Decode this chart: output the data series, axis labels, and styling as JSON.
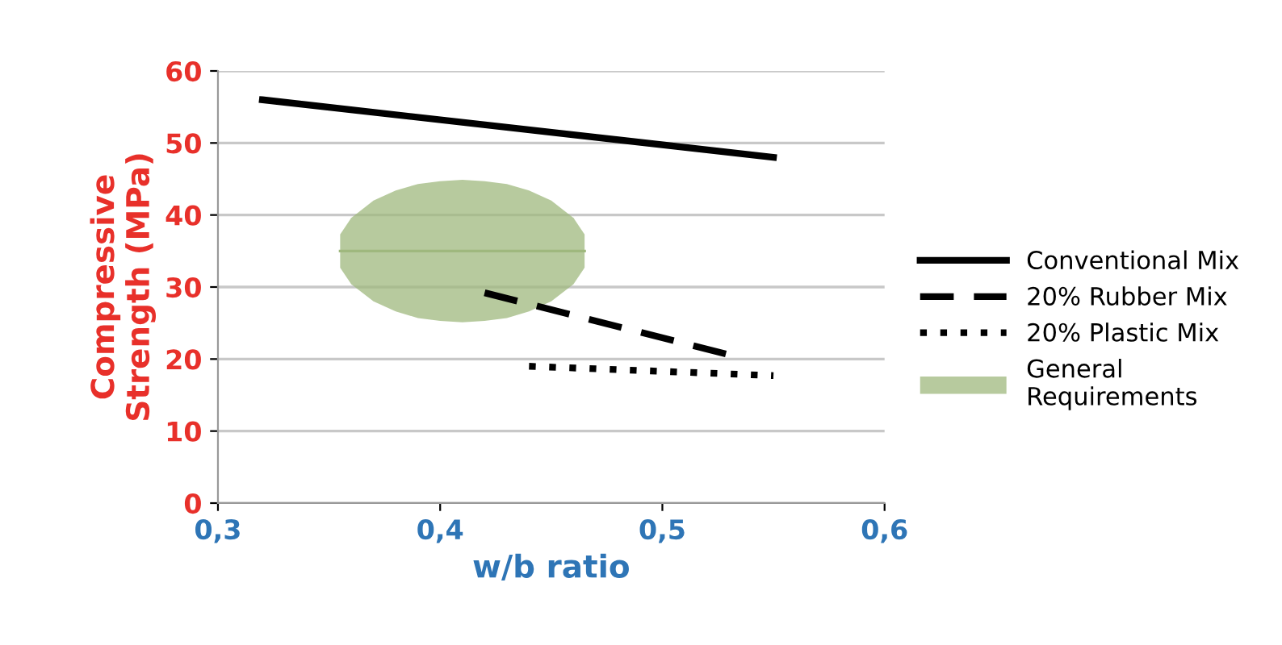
{
  "chart_data": {
    "type": "line",
    "xlabel": "w/b ratio",
    "ylabel": "Compressive\nStrength (MPa)",
    "xlim": [
      0.3,
      0.6
    ],
    "xticks": [
      {
        "value": 0.3,
        "label": "0,3"
      },
      {
        "value": 0.4,
        "label": "0,4"
      },
      {
        "value": 0.5,
        "label": "0,5"
      },
      {
        "value": 0.6,
        "label": "0,6"
      }
    ],
    "ylim": [
      0,
      60
    ],
    "yticks": [
      0,
      10,
      20,
      30,
      40,
      50,
      60
    ],
    "grid": "y",
    "legend": "right",
    "series": [
      {
        "name": "Conventional Mix",
        "color": "#000000",
        "line_style": "solid",
        "x": [
          0.32,
          0.55
        ],
        "values": [
          56,
          48
        ]
      },
      {
        "name": "20% Rubber Mix",
        "color": "#000000",
        "line_style": "dashed",
        "x": [
          0.42,
          0.53
        ],
        "values": [
          29.2,
          20.6
        ]
      },
      {
        "name": "20% Plastic Mix",
        "color": "#000000",
        "line_style": "dotted",
        "x": [
          0.44,
          0.55
        ],
        "values": [
          19,
          17.7
        ]
      },
      {
        "name": "General\nRequirements",
        "type": "line",
        "color": "#9fb87e",
        "x": [
          0.355,
          0.36,
          0.37,
          0.38,
          0.39,
          0.4,
          0.41,
          0.42,
          0.43,
          0.44,
          0.45,
          0.46,
          0.465
        ],
        "lower": [
          32.7,
          30.4,
          28.0,
          26.6,
          25.7,
          25.3,
          25.1,
          25.3,
          25.7,
          26.6,
          28.0,
          30.4,
          32.7
        ],
        "values": [
          35,
          35,
          35,
          35,
          35,
          35,
          35,
          35,
          35,
          35,
          35,
          35,
          35
        ],
        "upper": [
          37.3,
          39.6,
          42.0,
          43.4,
          44.3,
          44.7,
          44.9,
          44.7,
          44.3,
          43.4,
          42.0,
          39.6,
          37.3
        ]
      }
    ]
  }
}
